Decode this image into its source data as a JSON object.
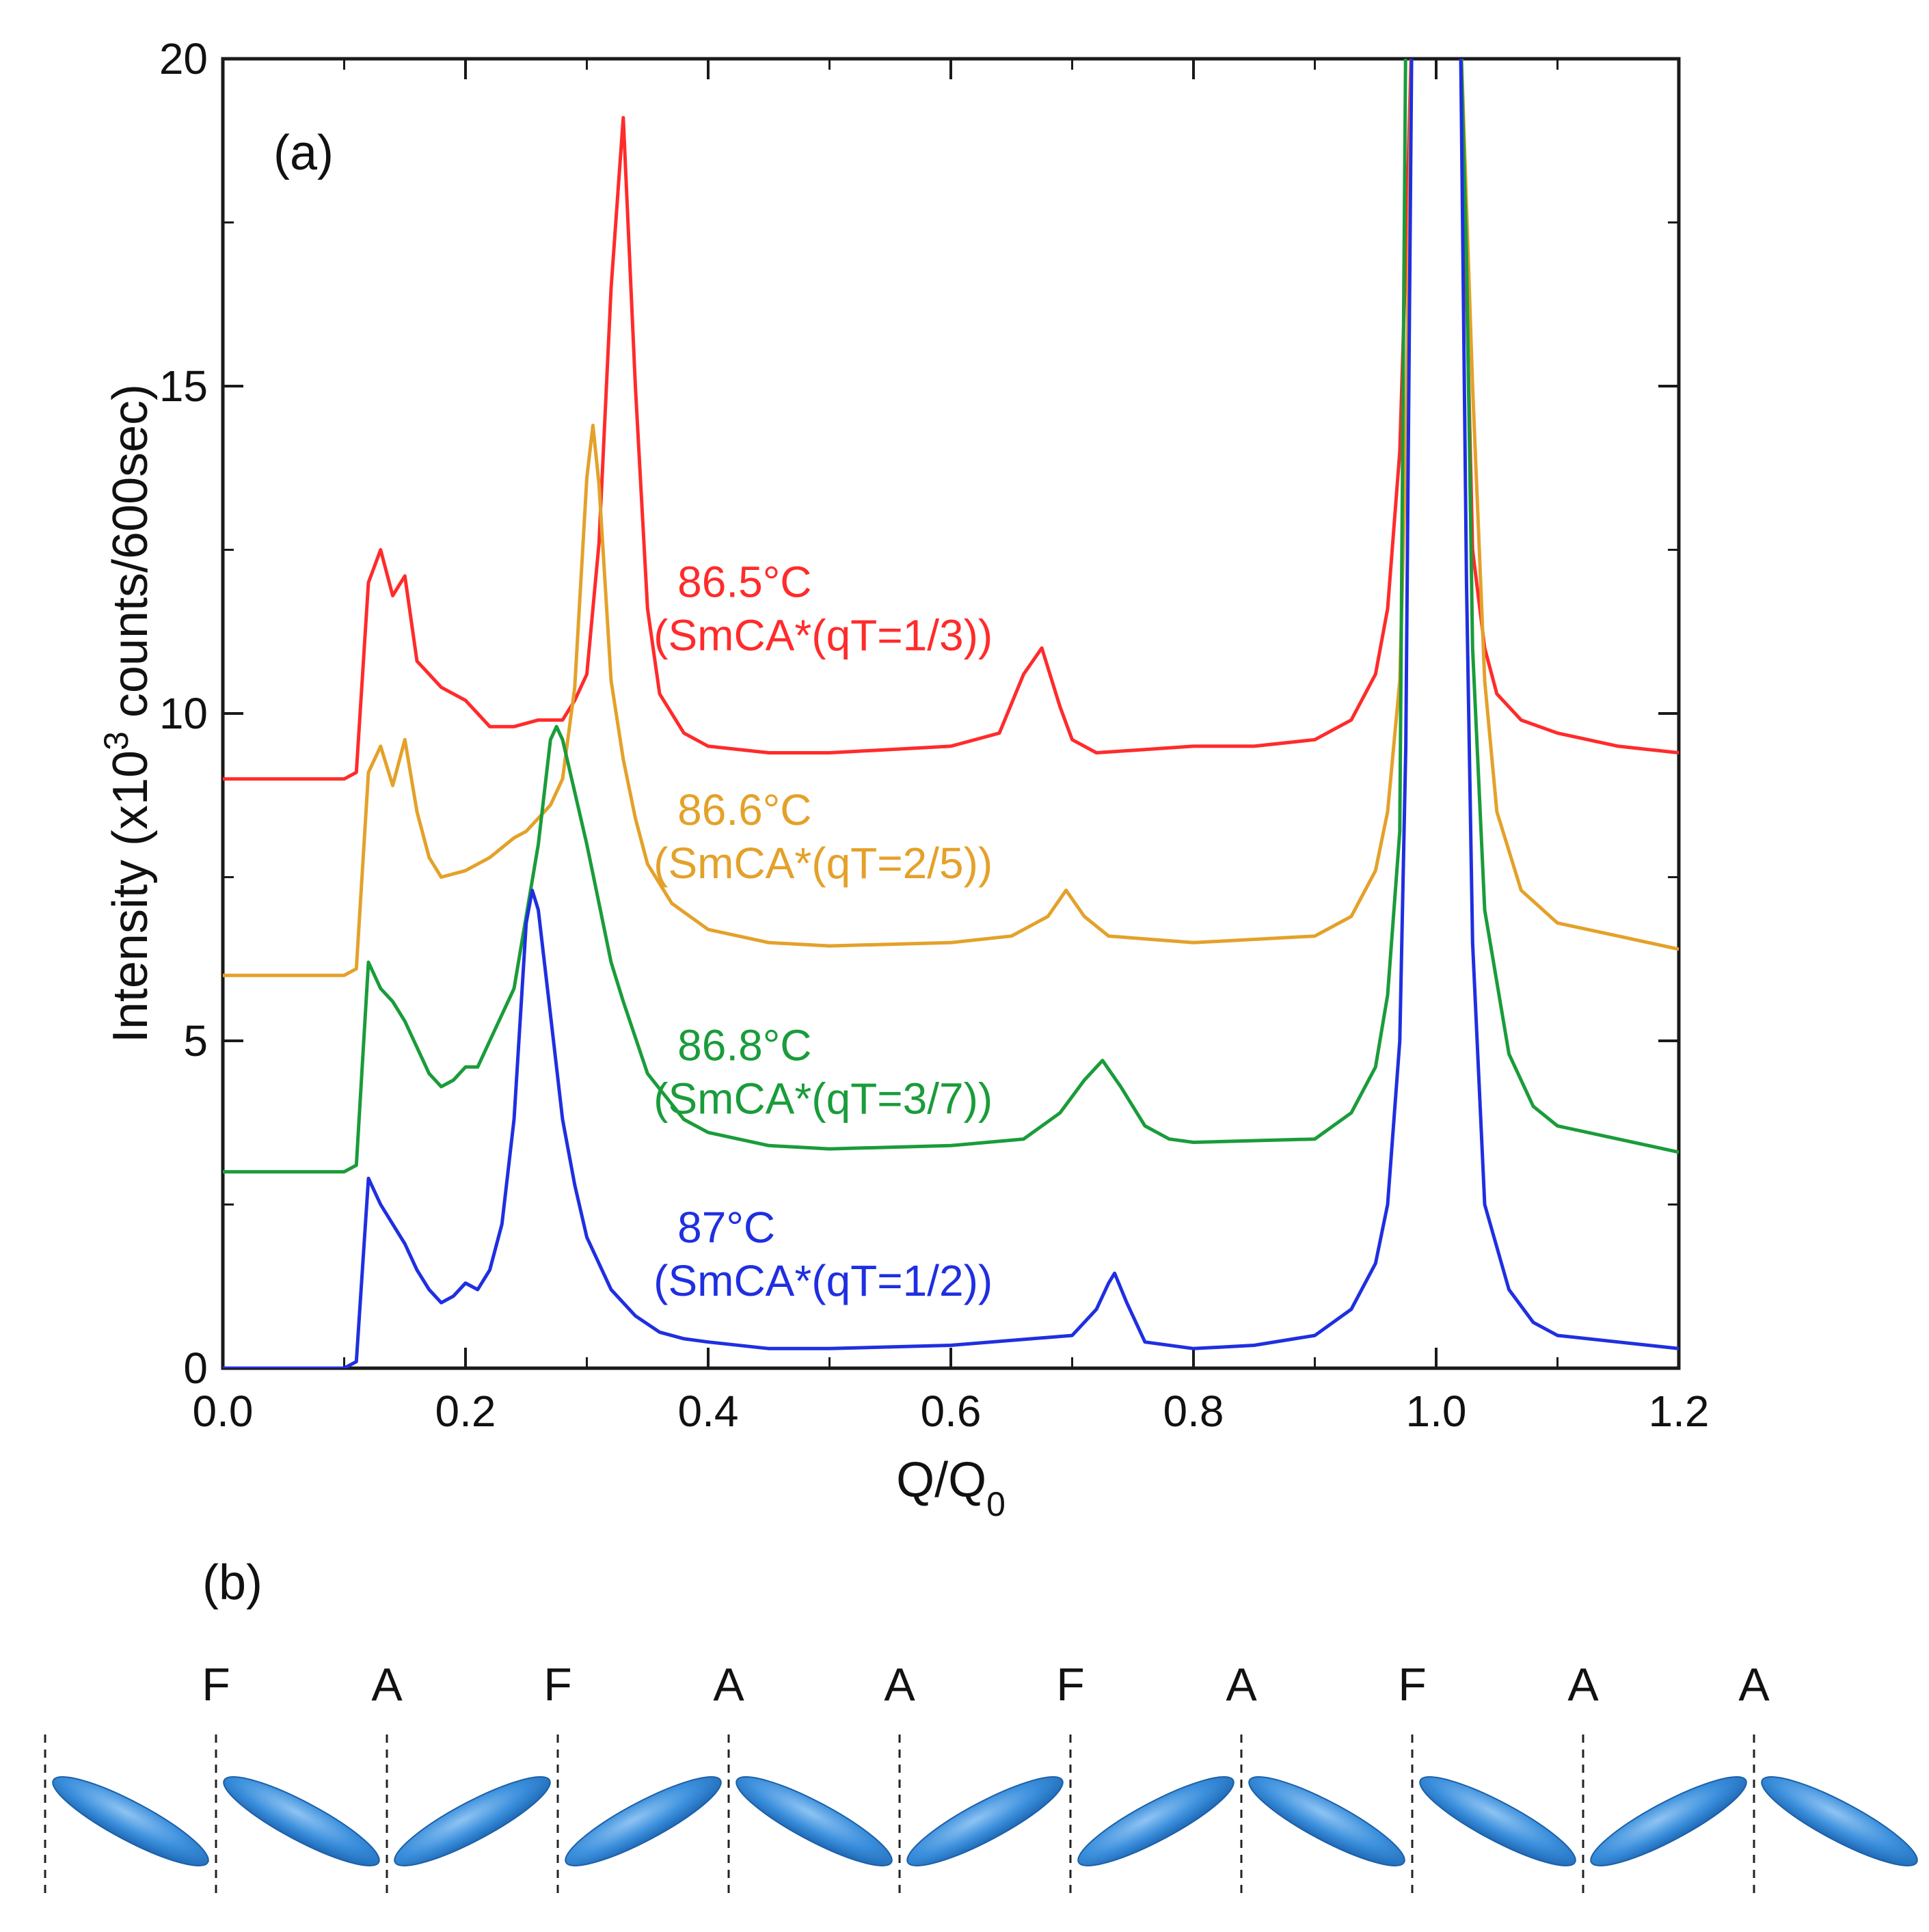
{
  "panel_a_label": "(a)",
  "panel_b_label": "(b)",
  "chart_data": {
    "type": "line",
    "xlabel": "Q/Q0",
    "ylabel": "Intensity (x10³ counts/600sec)",
    "xlim": [
      0.0,
      1.2
    ],
    "ylim": [
      0,
      20
    ],
    "xticks": [
      "0.0",
      "0.2",
      "0.4",
      "0.6",
      "0.8",
      "1.0",
      "1.2"
    ],
    "yticks": [
      "0",
      "5",
      "10",
      "15",
      "20"
    ],
    "grid": false,
    "series": [
      {
        "label_line1": "86.5°C",
        "label_line2": "(SmCA*(qT=1/3))",
        "color": "#ff2b2b",
        "x": [
          0.0,
          0.1,
          0.11,
          0.12,
          0.13,
          0.14,
          0.15,
          0.16,
          0.17,
          0.18,
          0.19,
          0.2,
          0.21,
          0.22,
          0.24,
          0.26,
          0.28,
          0.29,
          0.3,
          0.31,
          0.32,
          0.33,
          0.34,
          0.35,
          0.36,
          0.38,
          0.4,
          0.45,
          0.5,
          0.55,
          0.6,
          0.64,
          0.66,
          0.675,
          0.69,
          0.7,
          0.72,
          0.8,
          0.85,
          0.9,
          0.93,
          0.95,
          0.96,
          0.97,
          0.975,
          0.98,
          1.0,
          1.02,
          1.025,
          1.03,
          1.04,
          1.05,
          1.07,
          1.1,
          1.15,
          1.2
        ],
        "y": [
          9.0,
          9.0,
          9.1,
          12.0,
          12.5,
          11.8,
          12.1,
          10.8,
          10.6,
          10.4,
          10.3,
          10.2,
          10.0,
          9.8,
          9.8,
          9.9,
          9.9,
          10.2,
          10.6,
          12.6,
          16.5,
          19.1,
          15.0,
          11.6,
          10.3,
          9.7,
          9.5,
          9.4,
          9.4,
          9.45,
          9.5,
          9.7,
          10.6,
          11.0,
          10.1,
          9.6,
          9.4,
          9.5,
          9.5,
          9.6,
          9.9,
          10.6,
          11.6,
          14.0,
          17.0,
          20.5,
          20.5,
          20.5,
          16.5,
          12.5,
          11.0,
          10.3,
          9.9,
          9.7,
          9.5,
          9.4
        ]
      },
      {
        "label_line1": "86.6°C",
        "label_line2": "(SmCA*(qT=2/5))",
        "color": "#e4a12a",
        "x": [
          0.0,
          0.1,
          0.11,
          0.12,
          0.13,
          0.14,
          0.15,
          0.16,
          0.17,
          0.18,
          0.2,
          0.22,
          0.24,
          0.25,
          0.26,
          0.27,
          0.28,
          0.29,
          0.3,
          0.305,
          0.31,
          0.32,
          0.33,
          0.34,
          0.35,
          0.37,
          0.4,
          0.45,
          0.5,
          0.6,
          0.65,
          0.68,
          0.695,
          0.71,
          0.73,
          0.8,
          0.9,
          0.93,
          0.95,
          0.96,
          0.97,
          0.975,
          0.98,
          1.0,
          1.02,
          1.03,
          1.04,
          1.05,
          1.07,
          1.1,
          1.15,
          1.2
        ],
        "y": [
          6.0,
          6.0,
          6.1,
          9.1,
          9.5,
          8.9,
          9.6,
          8.5,
          7.8,
          7.5,
          7.6,
          7.8,
          8.1,
          8.2,
          8.4,
          8.6,
          9.0,
          10.4,
          13.6,
          14.4,
          13.5,
          10.5,
          9.3,
          8.4,
          7.7,
          7.1,
          6.7,
          6.5,
          6.45,
          6.5,
          6.6,
          6.9,
          7.3,
          6.9,
          6.6,
          6.5,
          6.6,
          6.9,
          7.6,
          8.5,
          10.5,
          14.0,
          20.5,
          20.5,
          20.5,
          15.0,
          10.5,
          8.5,
          7.3,
          6.8,
          6.6,
          6.4
        ]
      },
      {
        "label_line1": "86.8°C",
        "label_line2": "(SmCA*(qT=3/7))",
        "color": "#1a9c3a",
        "x": [
          0.0,
          0.1,
          0.11,
          0.12,
          0.13,
          0.14,
          0.15,
          0.16,
          0.17,
          0.18,
          0.19,
          0.2,
          0.21,
          0.22,
          0.24,
          0.26,
          0.27,
          0.275,
          0.28,
          0.29,
          0.3,
          0.31,
          0.32,
          0.33,
          0.35,
          0.38,
          0.4,
          0.45,
          0.5,
          0.6,
          0.66,
          0.69,
          0.71,
          0.725,
          0.74,
          0.76,
          0.78,
          0.8,
          0.9,
          0.93,
          0.95,
          0.96,
          0.97,
          0.975,
          1.0,
          1.02,
          1.025,
          1.03,
          1.04,
          1.06,
          1.08,
          1.1,
          1.15,
          1.2
        ],
        "y": [
          3.0,
          3.0,
          3.1,
          6.2,
          5.8,
          5.6,
          5.3,
          4.9,
          4.5,
          4.3,
          4.4,
          4.6,
          4.6,
          5.0,
          5.8,
          8.0,
          9.6,
          9.8,
          9.6,
          8.8,
          8.0,
          7.1,
          6.2,
          5.6,
          4.5,
          3.8,
          3.6,
          3.4,
          3.35,
          3.4,
          3.5,
          3.9,
          4.4,
          4.7,
          4.3,
          3.7,
          3.5,
          3.45,
          3.5,
          3.9,
          4.6,
          5.7,
          8.2,
          20.5,
          20.5,
          20.5,
          17.0,
          11.0,
          7.0,
          4.8,
          4.0,
          3.7,
          3.5,
          3.3
        ]
      },
      {
        "label_line1": "87°C",
        "label_line2": "(SmCA*(qT=1/2))",
        "color": "#1f2fe0",
        "x": [
          0.0,
          0.1,
          0.11,
          0.12,
          0.13,
          0.14,
          0.15,
          0.16,
          0.17,
          0.18,
          0.19,
          0.2,
          0.21,
          0.22,
          0.23,
          0.24,
          0.25,
          0.255,
          0.26,
          0.27,
          0.28,
          0.29,
          0.3,
          0.32,
          0.34,
          0.36,
          0.38,
          0.4,
          0.45,
          0.5,
          0.6,
          0.7,
          0.72,
          0.73,
          0.735,
          0.745,
          0.76,
          0.8,
          0.85,
          0.9,
          0.93,
          0.95,
          0.96,
          0.97,
          0.975,
          0.98,
          1.0,
          1.02,
          1.025,
          1.03,
          1.04,
          1.06,
          1.08,
          1.1,
          1.15,
          1.2
        ],
        "y": [
          0.0,
          0.0,
          0.1,
          2.9,
          2.5,
          2.2,
          1.9,
          1.5,
          1.2,
          1.0,
          1.1,
          1.3,
          1.2,
          1.5,
          2.2,
          3.8,
          6.8,
          7.3,
          7.0,
          5.4,
          3.8,
          2.8,
          2.0,
          1.2,
          0.8,
          0.55,
          0.45,
          0.4,
          0.3,
          0.3,
          0.35,
          0.5,
          0.9,
          1.3,
          1.45,
          1.0,
          0.4,
          0.3,
          0.35,
          0.5,
          0.9,
          1.6,
          2.5,
          5.0,
          9.5,
          20.5,
          20.5,
          20.5,
          12.0,
          6.5,
          2.5,
          1.2,
          0.7,
          0.5,
          0.4,
          0.3
        ]
      }
    ]
  },
  "diagram_b": {
    "letters": [
      "F",
      "A",
      "F",
      "A",
      "A",
      "F",
      "A",
      "F",
      "A",
      "A"
    ],
    "tilts": [
      1,
      1,
      -1,
      -1,
      1,
      -1,
      -1,
      1,
      1,
      -1,
      1
    ],
    "ellipse_color": "#3b8fdc"
  }
}
